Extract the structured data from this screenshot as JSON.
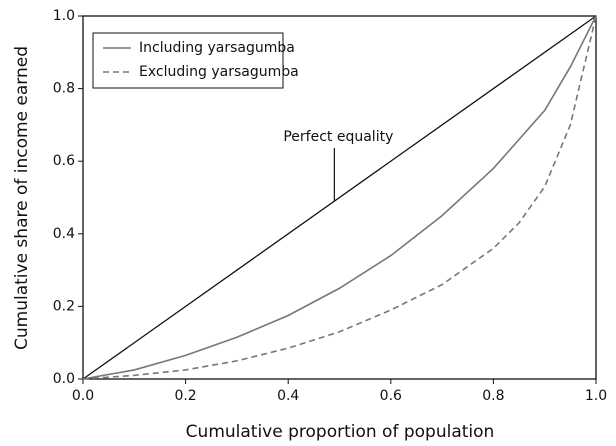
{
  "chart_data": {
    "type": "line",
    "x_label": "Cumulative proportion of population",
    "y_label": "Cumulative share of income earned",
    "xlim": [
      0,
      1
    ],
    "ylim": [
      0,
      1
    ],
    "xticks": [
      {
        "value": 0,
        "label": "0.0"
      },
      0.2,
      0.4,
      0.6,
      0.8,
      {
        "value": 1,
        "label": "1.0"
      }
    ],
    "yticks": [
      {
        "value": 0,
        "label": "0.0"
      },
      0.2,
      0.4,
      0.6,
      0.8,
      {
        "value": 1,
        "label": "1.0"
      }
    ],
    "legend": "upper left",
    "series": [
      {
        "name": "Including yarsagumba",
        "color": "#777777",
        "dashed": false,
        "x": [
          0,
          0.1,
          0.2,
          0.3,
          0.4,
          0.5,
          0.6,
          0.7,
          0.8,
          0.9,
          0.95,
          1
        ],
        "values": [
          0,
          0.025,
          0.065,
          0.115,
          0.175,
          0.25,
          0.34,
          0.45,
          0.58,
          0.74,
          0.86,
          1
        ]
      },
      {
        "name": "Excluding yarsagumba",
        "color": "#777777",
        "dashed": true,
        "x": [
          0,
          0.1,
          0.2,
          0.3,
          0.4,
          0.5,
          0.6,
          0.7,
          0.8,
          0.85,
          0.9,
          0.95,
          1
        ],
        "values": [
          0,
          0.01,
          0.025,
          0.05,
          0.085,
          0.13,
          0.19,
          0.26,
          0.36,
          0.43,
          0.53,
          0.7,
          1
        ]
      }
    ],
    "reference_line": {
      "label": "Perfect equality",
      "color": "#111111",
      "x": [
        0,
        1
      ],
      "values": [
        0,
        1
      ],
      "label_at": 0.49
    }
  }
}
